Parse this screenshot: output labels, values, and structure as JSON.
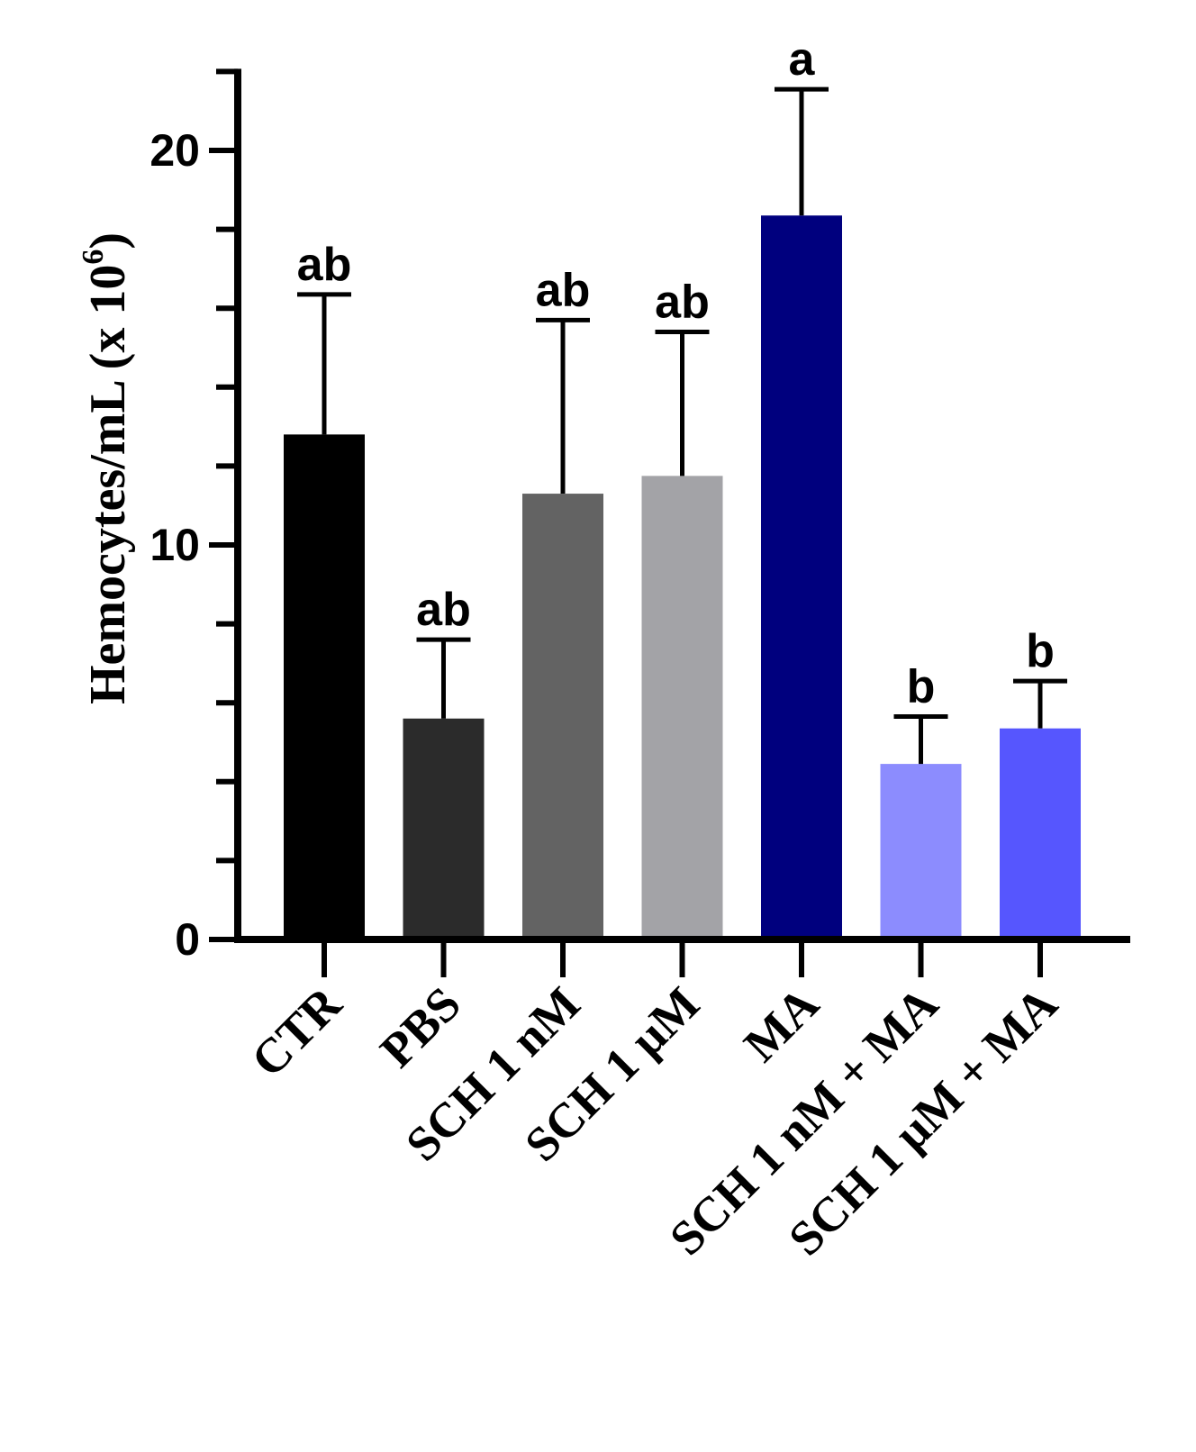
{
  "chart_data": {
    "type": "bar",
    "title": "",
    "xlabel": "",
    "ylabel": "Hemocytes/mL (x 10",
    "ylabel_superscript": "6",
    "ylabel_suffix": ")",
    "ylim": [
      0,
      22
    ],
    "major_ticks": [
      0,
      10,
      20
    ],
    "minor_step": 2,
    "categories": [
      "CTR",
      "PBS",
      "SCH 1 nM",
      "SCH 1 μM",
      "MA",
      "SCH 1 nM + MA",
      "SCH 1 μM + MA"
    ],
    "values": [
      12.8,
      5.6,
      11.3,
      11.75,
      18.35,
      4.45,
      5.35
    ],
    "errors": [
      3.55,
      2.0,
      4.4,
      3.65,
      3.2,
      1.2,
      1.2
    ],
    "significance_letters": [
      "ab",
      "ab",
      "ab",
      "ab",
      "a",
      "b",
      "b"
    ],
    "colors": [
      "#000000",
      "#2b2b2b",
      "#636363",
      "#a3a3a7",
      "#00007e",
      "#8c8cfe",
      "#5656fe"
    ]
  }
}
